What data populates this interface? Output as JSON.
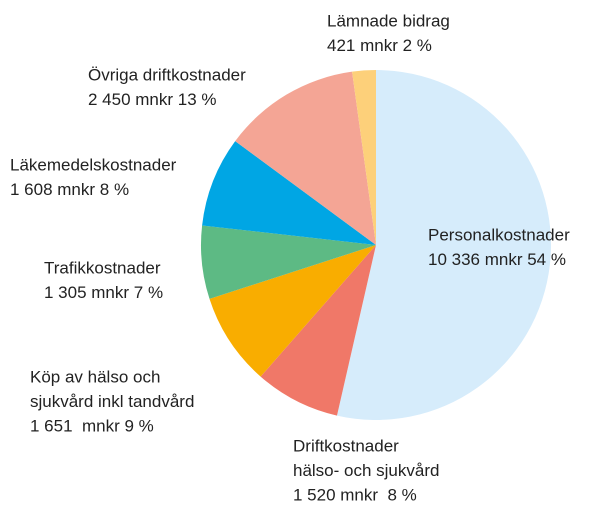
{
  "chart_data": {
    "type": "pie",
    "categories": [
      [
        "Personalkostnader"
      ],
      [
        "Driftkostnader",
        "hälso- och sjukvård"
      ],
      [
        "Köp av hälso och",
        "sjukvård inkl tandvård"
      ],
      [
        "Trafikkostnader"
      ],
      [
        "Läkemedelskostnader"
      ],
      [
        "Övriga driftkostnader"
      ],
      [
        "Lämnade bidrag"
      ]
    ],
    "values": [
      10336,
      1520,
      1651,
      1305,
      1608,
      2450,
      421
    ],
    "value_labels": [
      "10 336 mnkr 54 %",
      "1 520 mnkr  8 %",
      "1 651  mnkr 9 %",
      "1 305 mnkr 7 %",
      "1 608 mnkr 8 %",
      "2 450 mnkr 13 %",
      "421 mnkr 2 %"
    ],
    "colors": [
      "#d6ecfb",
      "#f07868",
      "#f9ad00",
      "#5dba84",
      "#00a6e4",
      "#f4a595",
      "#fdd07a"
    ]
  }
}
